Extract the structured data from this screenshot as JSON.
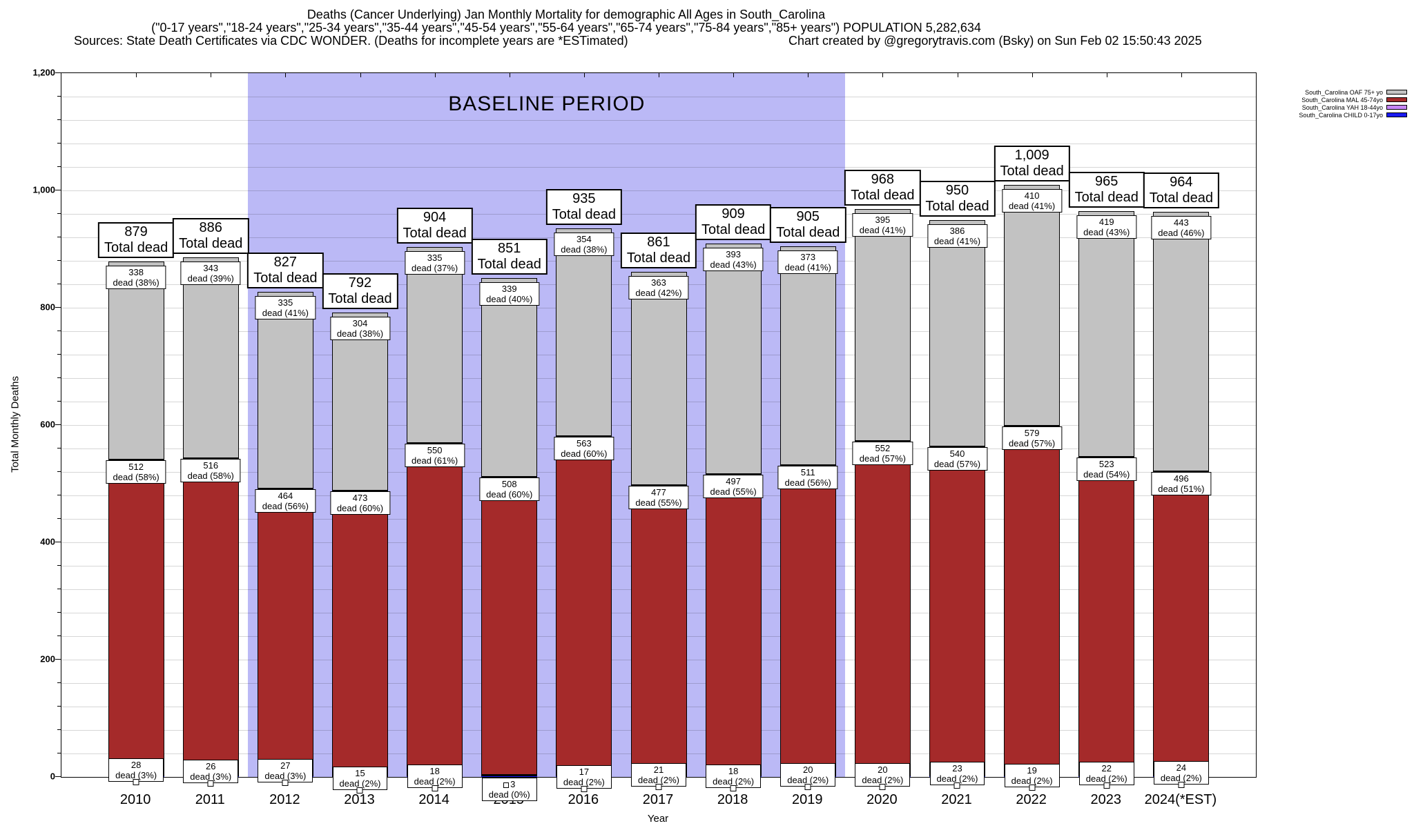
{
  "header": {
    "title_line1": "Deaths (Cancer Underlying) Jan Monthly Mortality for demographic All Ages in South_Carolina",
    "title_line2": "(\"0-17 years\",\"18-24 years\",\"25-34 years\",\"35-44 years\",\"45-54 years\",\"55-64 years\",\"65-74 years\",\"75-84 years\",\"85+ years\") POPULATION 5,282,634",
    "title_line3_left": "Sources: State Death Certificates via CDC WONDER. (Deaths for incomplete years are *ESTimated)",
    "title_line3_right": "Chart created by @gregorytravis.com (Bsky) on Sun Feb 02 15:50:43 2025"
  },
  "legend": {
    "position": "top-right",
    "entries": [
      {
        "label": "South_Carolina OAF 75+ yo",
        "color": "#c2c2c2"
      },
      {
        "label": "South_Carolina MAL 45-74yo",
        "color": "#a52a2a"
      },
      {
        "label": "South_Carolina YAH 18-44yo",
        "color": "#c685f8"
      },
      {
        "label": "South_Carolina CHILD 0-17yo",
        "color": "#1a1af0"
      }
    ]
  },
  "chart_data": {
    "type": "bar",
    "stacked": true,
    "title": "Deaths (Cancer Underlying) Jan Monthly Mortality for demographic All Ages in South_Carolina",
    "xlabel": "Year",
    "ylabel": "Total Monthly Deaths",
    "ylim": [
      0,
      1200
    ],
    "ytick_step": 200,
    "minor_grid_step": 40,
    "grid": true,
    "yticks": [
      "0",
      "200",
      "400",
      "600",
      "800",
      "1,000",
      "1,200"
    ],
    "baseline_region": {
      "label": "BASELINE PERIOD",
      "from_category": "2012",
      "to_category": "2019",
      "color": "#bbb9f6"
    },
    "categories": [
      "2010",
      "2011",
      "2012",
      "2013",
      "2014",
      "2015",
      "2016",
      "2017",
      "2018",
      "2019",
      "2020",
      "2021",
      "2022",
      "2023",
      "2024(*EST)"
    ],
    "totals": [
      879,
      886,
      827,
      792,
      904,
      851,
      935,
      861,
      909,
      905,
      968,
      950,
      1009,
      965,
      964
    ],
    "total_label_text": "Total dead",
    "segment_label_word": "dead",
    "series": [
      {
        "name": "South_Carolina OAF 75+ yo",
        "color": "#c2c2c2",
        "values": [
          338,
          343,
          335,
          304,
          335,
          339,
          354,
          363,
          393,
          373,
          395,
          386,
          410,
          419,
          443
        ],
        "pcts": [
          38,
          39,
          41,
          38,
          37,
          40,
          38,
          42,
          43,
          41,
          41,
          41,
          41,
          43,
          46
        ]
      },
      {
        "name": "South_Carolina MAL 45-74yo",
        "color": "#a52a2a",
        "values": [
          512,
          516,
          464,
          473,
          550,
          508,
          563,
          477,
          497,
          511,
          552,
          540,
          579,
          523,
          496
        ],
        "pcts": [
          58,
          58,
          56,
          60,
          61,
          60,
          60,
          55,
          55,
          56,
          57,
          57,
          57,
          54,
          51
        ]
      },
      {
        "name": "South_Carolina YAH 18-44yo",
        "color": "#c685f8",
        "values": [
          28,
          26,
          27,
          15,
          18,
          3,
          17,
          21,
          18,
          20,
          20,
          23,
          19,
          22,
          24
        ],
        "pcts": [
          3,
          3,
          3,
          2,
          2,
          0,
          2,
          2,
          2,
          2,
          2,
          2,
          2,
          2,
          2
        ]
      }
    ],
    "child_series": {
      "name": "South_Carolina CHILD 0-17yo",
      "color": "#1a1af0"
    }
  }
}
